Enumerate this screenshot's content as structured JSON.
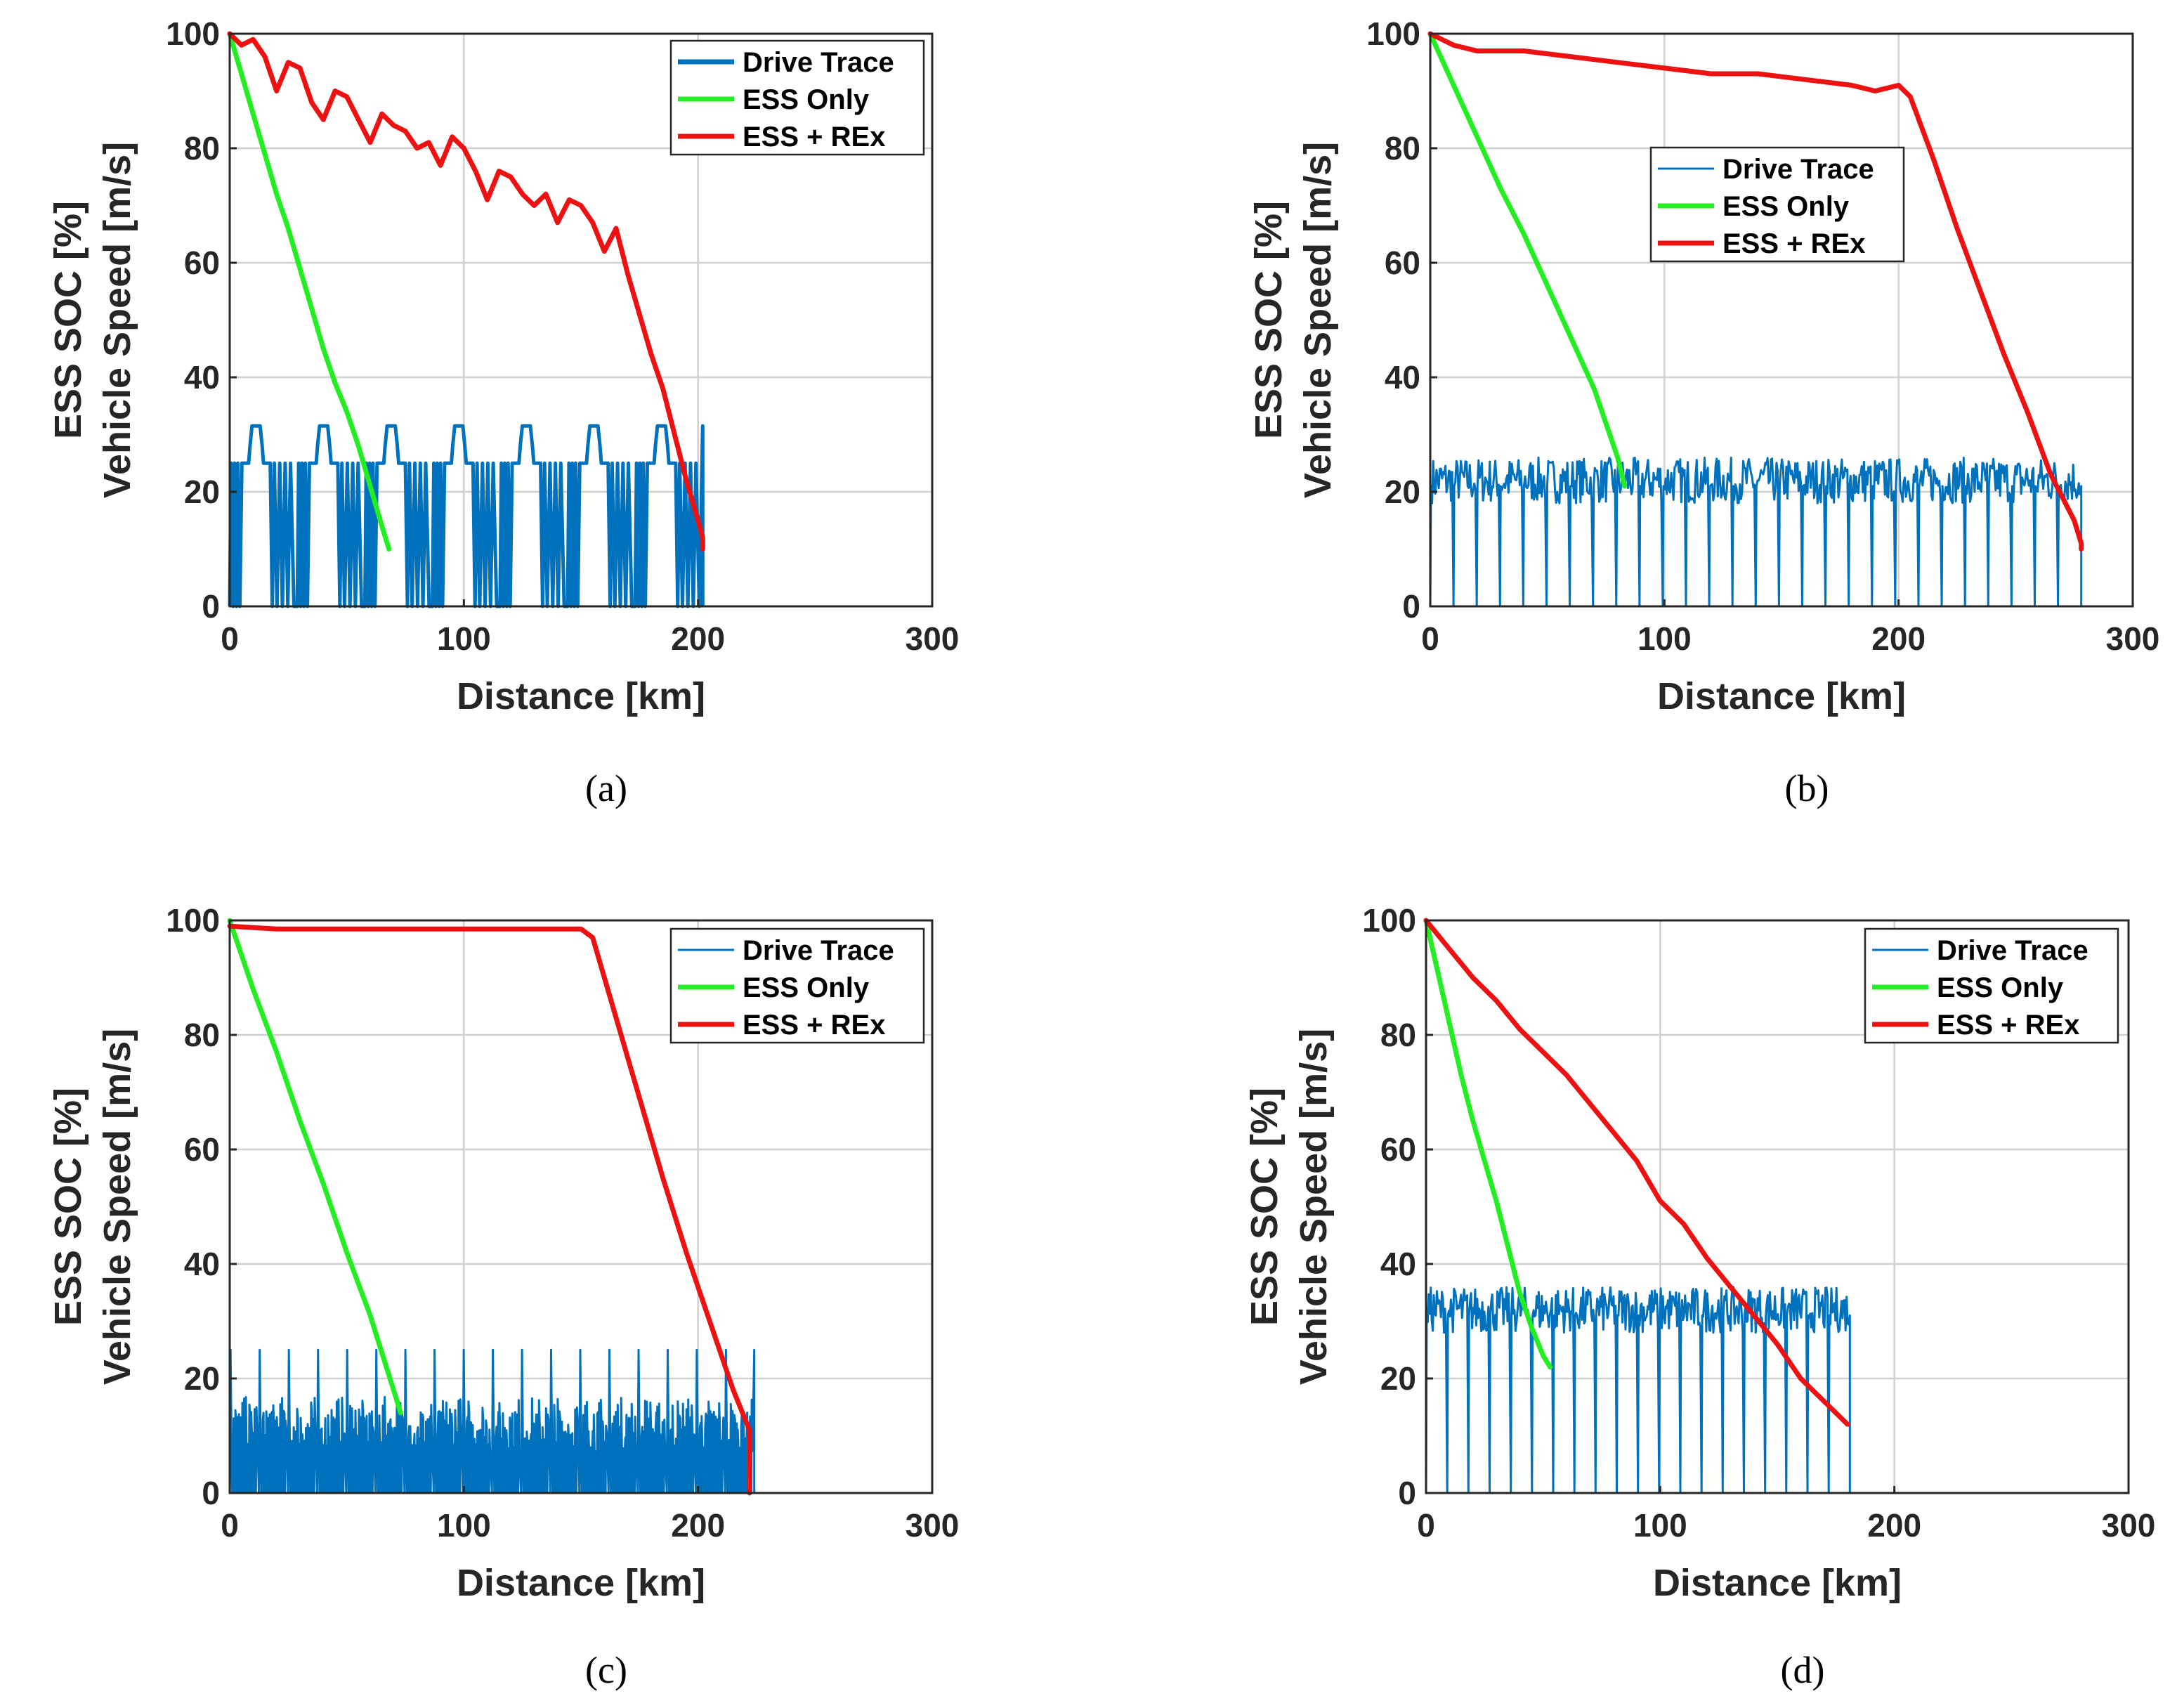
{
  "colors": {
    "drive": "#0072BD",
    "ess_only": "#22EE22",
    "ess_rex": "#EE1111",
    "grid": "#d0d0d0",
    "axis": "#262626"
  },
  "chart_data": [
    {
      "type": "line",
      "caption": "(a)",
      "xlabel": "Distance [km]",
      "ylabel": [
        "ESS SOC [%]",
        "Vehicle Speed [m/s]"
      ],
      "xlim": [
        0,
        300
      ],
      "ylim": [
        0,
        100
      ],
      "xticks": [
        "0",
        "100",
        "200",
        "300"
      ],
      "yticks": [
        "0",
        "20",
        "40",
        "60",
        "80",
        "100"
      ],
      "grid": true,
      "legend_position": "top-right",
      "drive_trace": {
        "kind": "hilly",
        "end": 202,
        "cycles": 7,
        "peak": 31.5,
        "mid": 25
      },
      "series": [
        {
          "name": "Drive Trace",
          "color_key": "drive"
        },
        {
          "name": "ESS Only",
          "color_key": "ess_only",
          "x": [
            0,
            5,
            10,
            15,
            20,
            25,
            30,
            35,
            40,
            45,
            50,
            55,
            60,
            65,
            68
          ],
          "y": [
            100,
            93,
            86,
            79,
            72,
            66,
            59,
            52,
            45,
            39,
            34,
            28,
            21,
            14,
            10
          ]
        },
        {
          "name": "ESS + REx",
          "color_key": "ess_rex",
          "x": [
            0,
            5,
            10,
            15,
            20,
            25,
            30,
            35,
            40,
            45,
            50,
            55,
            60,
            65,
            70,
            75,
            80,
            85,
            90,
            95,
            100,
            105,
            110,
            115,
            120,
            125,
            130,
            135,
            140,
            145,
            150,
            155,
            160,
            165,
            170,
            175,
            180,
            185,
            190,
            195,
            200,
            202,
            202
          ],
          "y": [
            100,
            98,
            99,
            96,
            90,
            95,
            94,
            88,
            85,
            90,
            89,
            85,
            81,
            86,
            84,
            83,
            80,
            81,
            77,
            82,
            80,
            76,
            71,
            76,
            75,
            72,
            70,
            72,
            67,
            71,
            70,
            67,
            62,
            66,
            58,
            51,
            44,
            38,
            30,
            22,
            15,
            12,
            10
          ]
        }
      ]
    },
    {
      "type": "line",
      "caption": "(b)",
      "xlabel": "Distance [km]",
      "ylabel": [
        "ESS SOC [%]",
        "Vehicle Speed [m/s]"
      ],
      "xlim": [
        0,
        300
      ],
      "ylim": [
        0,
        100
      ],
      "xticks": [
        "0",
        "100",
        "200",
        "300"
      ],
      "yticks": [
        "0",
        "20",
        "40",
        "60",
        "80",
        "100"
      ],
      "grid": true,
      "legend_position": "upper-center-right",
      "drive_trace": {
        "kind": "highway",
        "end": 278,
        "cycles": 28,
        "peak": 26,
        "mid": 21
      },
      "series": [
        {
          "name": "Drive Trace",
          "color_key": "drive"
        },
        {
          "name": "ESS Only",
          "color_key": "ess_only",
          "x": [
            0,
            10,
            20,
            30,
            40,
            50,
            60,
            70,
            80,
            83
          ],
          "y": [
            100,
            91,
            82,
            73,
            65,
            56,
            47,
            38,
            26,
            21
          ]
        },
        {
          "name": "ESS + REx",
          "color_key": "ess_rex",
          "x": [
            0,
            10,
            20,
            40,
            60,
            80,
            100,
            120,
            140,
            160,
            180,
            190,
            200,
            205,
            215,
            225,
            235,
            245,
            255,
            265,
            275,
            278,
            278
          ],
          "y": [
            100,
            98,
            97,
            97,
            96,
            95,
            94,
            93,
            93,
            92,
            91,
            90,
            91,
            89,
            78,
            66,
            55,
            44,
            34,
            23,
            15,
            11,
            10
          ]
        }
      ]
    },
    {
      "type": "line",
      "caption": "(c)",
      "xlabel": "Distance [km]",
      "ylabel": [
        "ESS SOC [%]",
        "Vehicle Speed [m/s]"
      ],
      "xlim": [
        0,
        300
      ],
      "ylim": [
        0,
        100
      ],
      "xticks": [
        "0",
        "100",
        "200",
        "300"
      ],
      "yticks": [
        "0",
        "20",
        "40",
        "60",
        "80",
        "100"
      ],
      "grid": true,
      "legend_position": "top-right",
      "drive_trace": {
        "kind": "urban",
        "end": 224,
        "cycles": 18,
        "peak": 25,
        "mid": 12
      },
      "series": [
        {
          "name": "Drive Trace",
          "color_key": "drive"
        },
        {
          "name": "ESS Only",
          "color_key": "ess_only",
          "x": [
            0,
            5,
            10,
            20,
            30,
            40,
            50,
            60,
            70,
            73
          ],
          "y": [
            100,
            94,
            88,
            77,
            65,
            54,
            42,
            31,
            18,
            14
          ]
        },
        {
          "name": "ESS + REx",
          "color_key": "ess_rex",
          "x": [
            0,
            20,
            40,
            60,
            80,
            100,
            120,
            140,
            150,
            155,
            165,
            175,
            185,
            195,
            205,
            215,
            220,
            222,
            222
          ],
          "y": [
            99,
            98.5,
            98.5,
            98.5,
            98.5,
            98.5,
            98.5,
            98.5,
            98.5,
            97,
            83,
            69,
            55,
            42,
            30,
            18,
            13,
            11,
            0
          ]
        }
      ]
    },
    {
      "type": "line",
      "caption": "(d)",
      "xlabel": "Distance [km]",
      "ylabel": [
        "ESS SOC [%]",
        "Vehicle Speed [m/s]"
      ],
      "xlim": [
        0,
        300
      ],
      "ylim": [
        0,
        100
      ],
      "xticks": [
        "0",
        "100",
        "200",
        "300"
      ],
      "yticks": [
        "0",
        "20",
        "40",
        "60",
        "80",
        "100"
      ],
      "grid": true,
      "legend_position": "top-right",
      "drive_trace": {
        "kind": "highway",
        "end": 181,
        "cycles": 20,
        "peak": 36,
        "mid": 31
      },
      "series": [
        {
          "name": "Drive Trace",
          "color_key": "drive"
        },
        {
          "name": "ESS Only",
          "color_key": "ess_only",
          "x": [
            0,
            5,
            10,
            15,
            20,
            25,
            30,
            35,
            40,
            45,
            50,
            53
          ],
          "y": [
            100,
            91,
            82,
            73,
            65,
            58,
            51,
            43,
            35,
            29,
            24,
            22
          ]
        },
        {
          "name": "ESS + REx",
          "color_key": "ess_rex",
          "x": [
            0,
            10,
            20,
            30,
            40,
            50,
            60,
            70,
            80,
            90,
            100,
            110,
            120,
            130,
            140,
            150,
            160,
            170,
            180
          ],
          "y": [
            100,
            95,
            90,
            86,
            81,
            77,
            73,
            68,
            63,
            58,
            51,
            47,
            41,
            36,
            31,
            26,
            20,
            16,
            12
          ]
        }
      ]
    }
  ]
}
